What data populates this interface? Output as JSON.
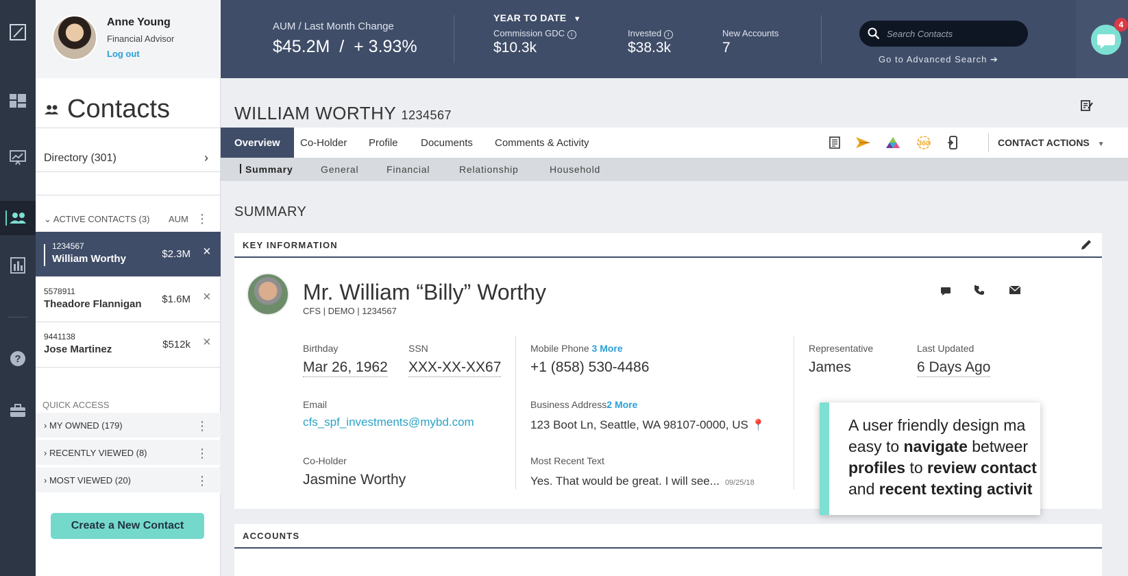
{
  "user": {
    "name": "Anne Young",
    "role": "Financial Advisor",
    "logout": "Log out"
  },
  "header": {
    "aum_label": "AUM / Last Month Change",
    "aum_value": "$45.2M  /  + 3.93%",
    "period": "YEAR TO DATE",
    "commission_label": "Commission GDC",
    "commission_value": "$10.3k",
    "invested_label": "Invested",
    "invested_value": "$38.3k",
    "new_accounts_label": "New Accounts",
    "new_accounts_value": "7",
    "search_placeholder": "Search Contacts",
    "advanced_search": "Go to Advanced Search",
    "chat_badge": "4"
  },
  "sidebar": {
    "title": "Contacts",
    "directory": "Directory (301)",
    "active_header": "ACTIVE CONTACTS (3)",
    "active_aum_label": "AUM",
    "contacts": [
      {
        "id": "1234567",
        "name": "William Worthy",
        "aum": "$2.3M"
      },
      {
        "id": "5578911",
        "name": "Theadore Flannigan",
        "aum": "$1.6M"
      },
      {
        "id": "9441138",
        "name": "Jose Martinez",
        "aum": "$512k"
      }
    ],
    "quick_access_label": "QUICK ACCESS",
    "quick_access": [
      "MY OWNED (179)",
      "RECENTLY VIEWED (8)",
      "MOST VIEWED (20)"
    ],
    "create_button": "Create a New Contact"
  },
  "contact": {
    "header_name": "WILLIAM WORTHY",
    "header_id": "1234567",
    "tabs": [
      "Overview",
      "Co-Holder",
      "Profile",
      "Documents",
      "Comments & Activity"
    ],
    "contact_actions": "CONTACT ACTIONS",
    "subtabs": [
      "Summary",
      "General",
      "Financial",
      "Relationship",
      "Household"
    ],
    "summary_title": "SUMMARY",
    "key_info_title": "KEY INFORMATION",
    "full_name": "Mr. William “Billy” Worthy",
    "subline": "CFS | DEMO | 1234567",
    "fields": {
      "birthday_label": "Birthday",
      "birthday": "Mar 26, 1962",
      "ssn_label": "SSN",
      "ssn": "XXX-XX-XX67",
      "email_label": "Email",
      "email": "cfs_spf_investments@mybd.com",
      "coholder_label": "Co-Holder",
      "coholder": "Jasmine Worthy",
      "mobile_label": "Mobile Phone",
      "mobile_more": "3 More",
      "mobile": "+1 (858) 530-4486",
      "address_label": "Business Address",
      "address_more": "2 More",
      "address": "123 Boot Ln, Seattle, WA 98107-0000, US",
      "text_label": "Most Recent Text",
      "text": "Yes. That would be great. I will see...",
      "text_date": "09/25/18",
      "rep_label": "Representative",
      "rep": "James",
      "updated_label": "Last Updated",
      "updated": "6 Days Ago"
    },
    "accounts_title": "ACCOUNTS"
  },
  "overlay": {
    "line1": "A user friendly design ma",
    "line2a": "easy to ",
    "line2b": "navigate",
    "line2c": " betweer",
    "line3a": "profiles",
    "line3b": " to ",
    "line3c": "review contact",
    "line4a": "and ",
    "line4b": "recent texting activit"
  }
}
